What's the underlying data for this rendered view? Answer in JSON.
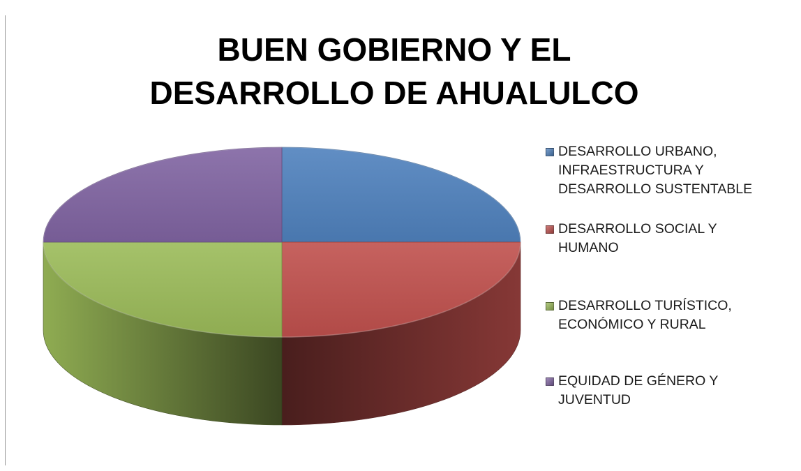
{
  "chart_data": {
    "type": "pie",
    "title": "BUEN GOBIERNO Y EL DESARROLLO DE AHUALULCO",
    "style": "3d",
    "legend_position": "right",
    "slices": [
      {
        "label": "DESARROLLO URBANO, INFRAESTRUCTURA Y DESARROLLO SUSTENTABLE",
        "value": 25,
        "color": "#4f81bd"
      },
      {
        "label": "DESARROLLO SOCIAL Y HUMANO",
        "value": 25,
        "color": "#c0504d"
      },
      {
        "label": "DESARROLLO TURÍSTICO, ECONÓMICO Y RURAL",
        "value": 25,
        "color": "#9bbb59"
      },
      {
        "label": "EQUIDAD DE GÉNERO Y JUVENTUD",
        "value": 25,
        "color": "#8064a2"
      }
    ]
  }
}
